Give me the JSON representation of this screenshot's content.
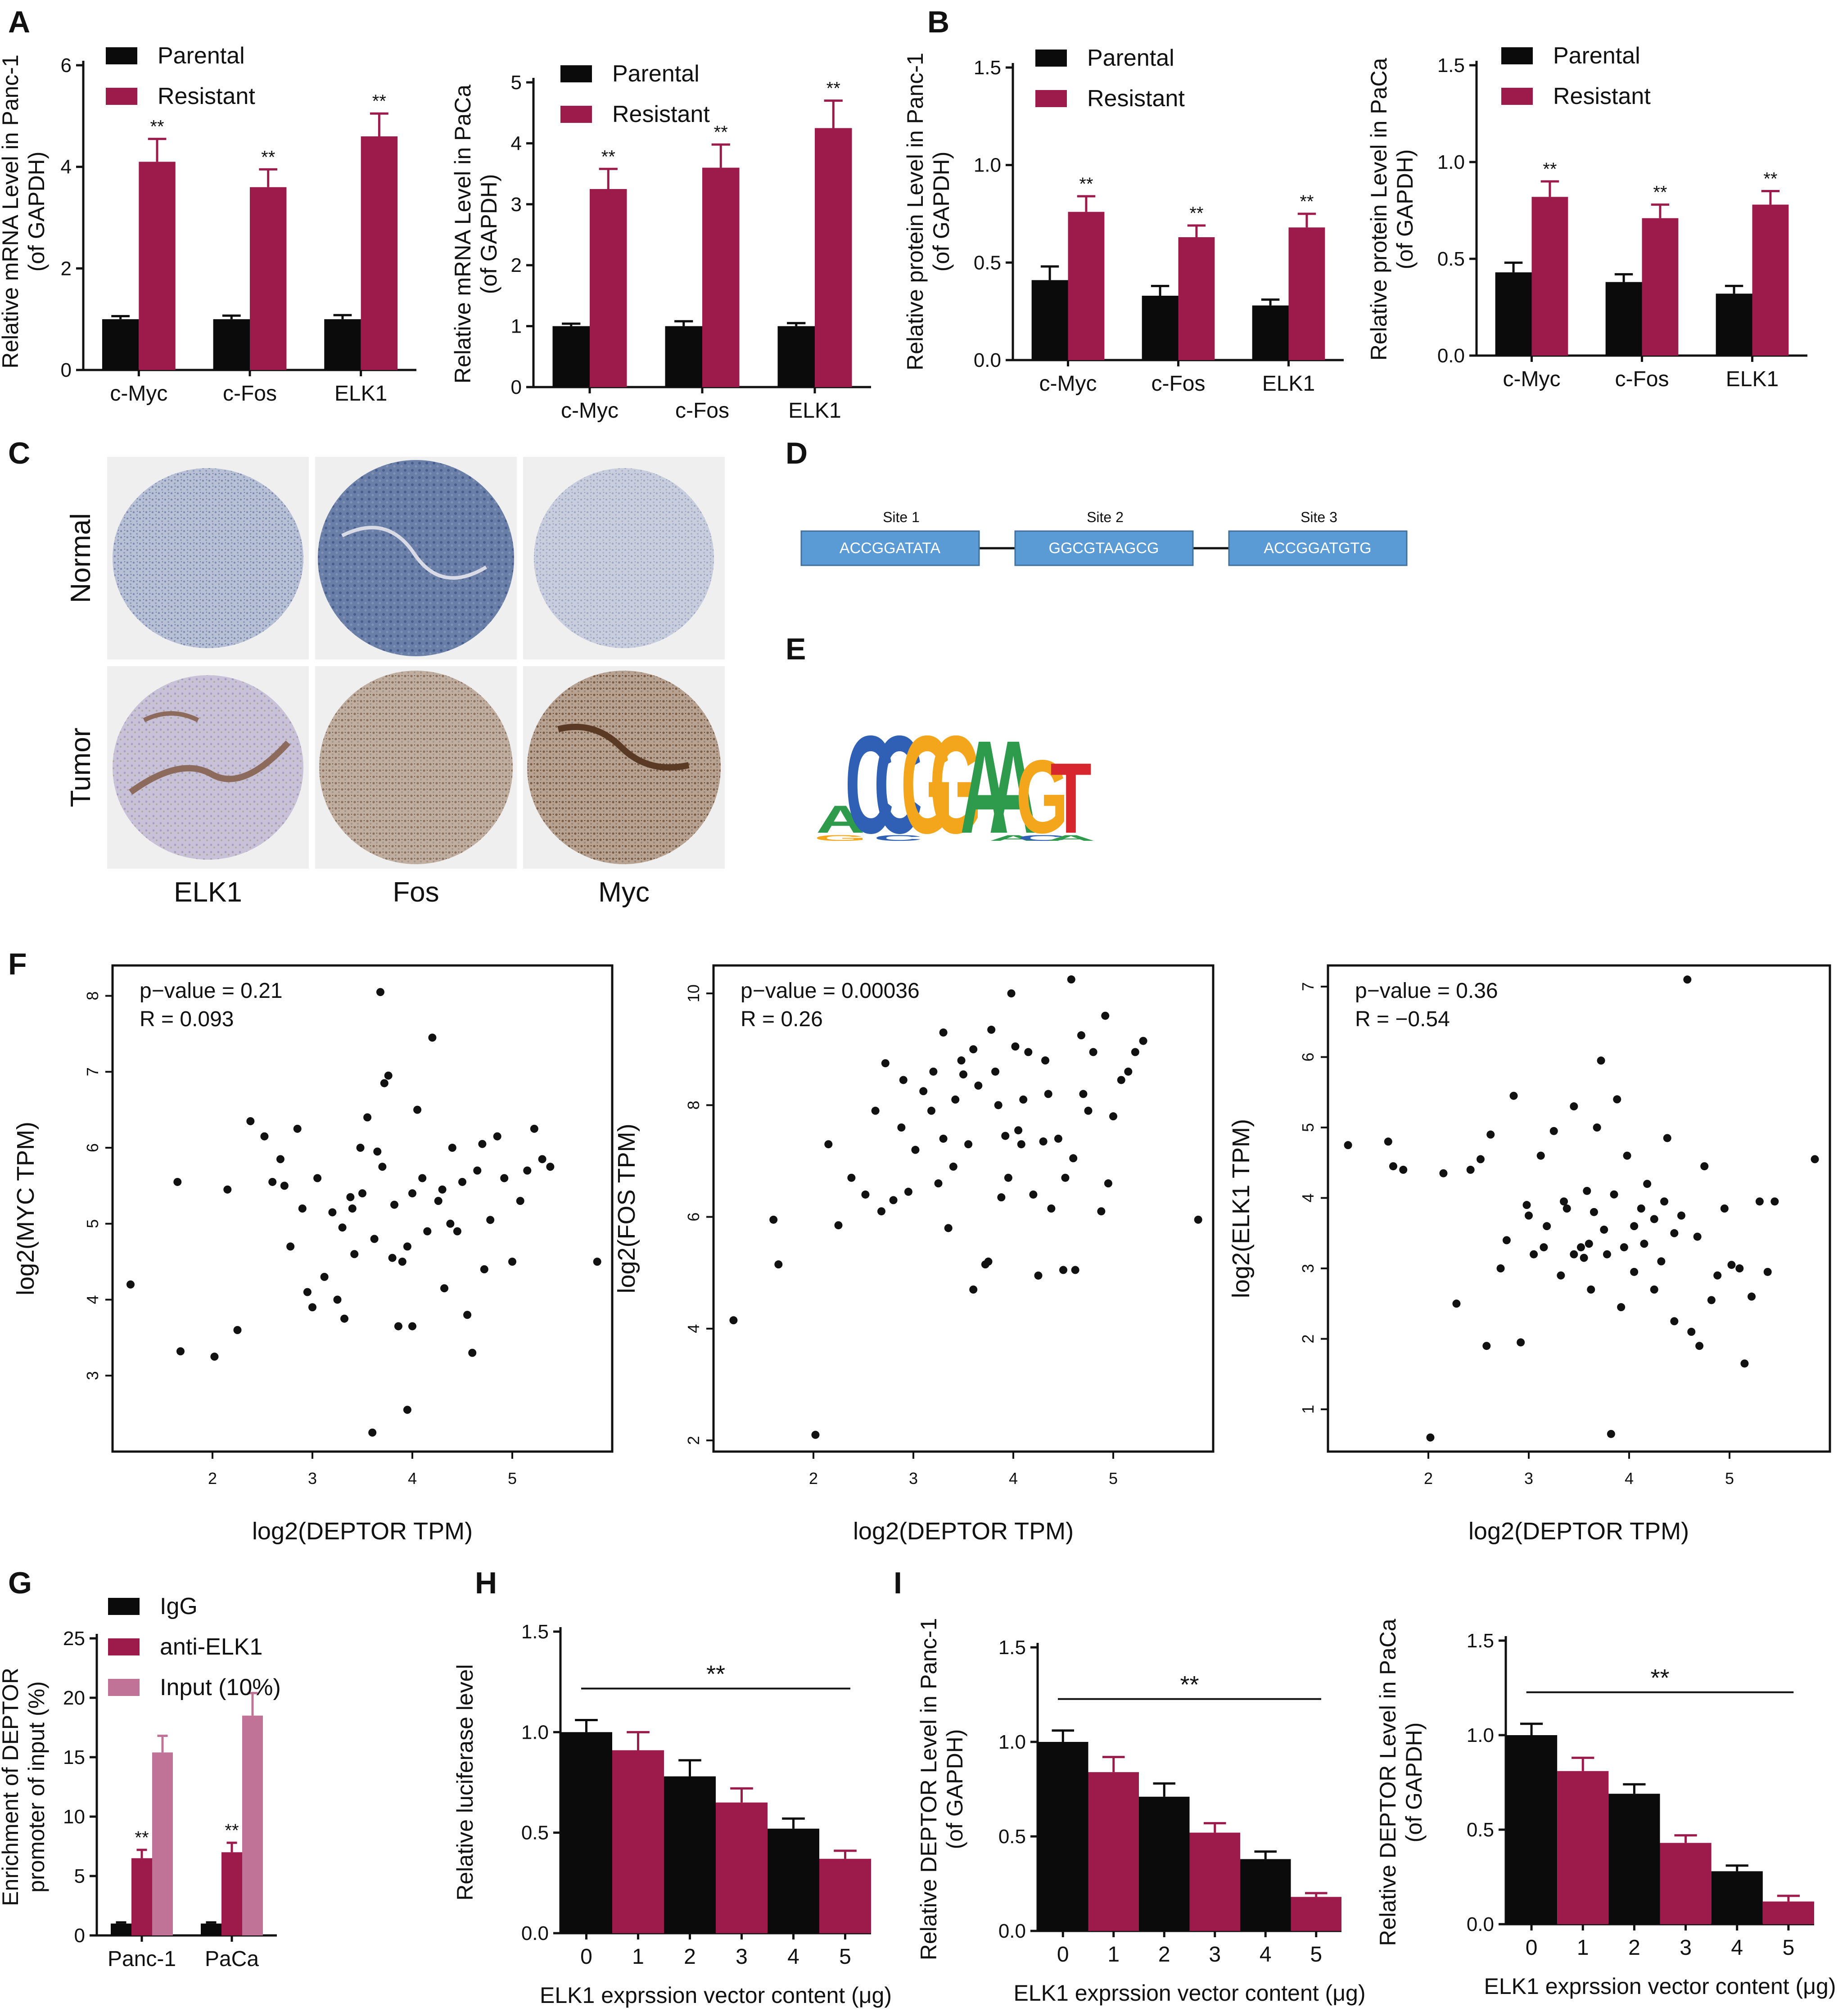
{
  "colors": {
    "black": "#0b0b0b",
    "crimson": "#9c1b4b",
    "pink": "#c07397",
    "box_blue": "#5b9bd5",
    "motif_A": "#2e9a4b",
    "motif_C": "#2f60b5",
    "motif_G": "#f3a61c",
    "motif_T": "#d7262e"
  },
  "panel_labels": {
    "A": "A",
    "B": "B",
    "C": "C",
    "D": "D",
    "E": "E",
    "F": "F",
    "G": "G",
    "H": "H",
    "I": "I"
  },
  "legends": {
    "parental": "Parental",
    "resistant": "Resistant",
    "igg": "IgG",
    "anti_elk1": "anti-ELK1",
    "input": "Input (10%)"
  },
  "significance": "**",
  "ihc": {
    "row_labels": [
      "Normal",
      "Tumor"
    ],
    "col_labels": [
      "ELK1",
      "Fos",
      "Myc"
    ]
  },
  "promoter": {
    "sites": [
      {
        "name": "Site 1",
        "seq": "ACCGGATATA"
      },
      {
        "name": "Site 2",
        "seq": "GGCGTAAGCG"
      },
      {
        "name": "Site 3",
        "seq": "ACCGGATGTG"
      }
    ]
  },
  "motif": {
    "letters": [
      "A",
      "C",
      "C",
      "G",
      "G",
      "A",
      "A",
      "G",
      "T"
    ]
  },
  "chart_data": [
    {
      "id": "A1",
      "type": "bar",
      "categories": [
        "c-Myc",
        "c-Fos",
        "ELK1"
      ],
      "ylabel": [
        "Relative mRNA Level in Panc-1",
        "(of GAPDH)"
      ],
      "ylim": [
        0,
        6
      ],
      "yticks": [
        0,
        2,
        4,
        6
      ],
      "series": [
        {
          "name": "Parental",
          "values": [
            1.0,
            1.0,
            1.0
          ],
          "errors": [
            0.06,
            0.07,
            0.08
          ]
        },
        {
          "name": "Resistant",
          "values": [
            4.1,
            3.6,
            4.6
          ],
          "errors": [
            0.45,
            0.35,
            0.45
          ]
        }
      ],
      "annotations": [
        "**",
        "**",
        "**"
      ]
    },
    {
      "id": "A2",
      "type": "bar",
      "categories": [
        "c-Myc",
        "c-Fos",
        "ELK1"
      ],
      "ylabel": [
        "Relative mRNA Level in PaCa",
        "(of GAPDH)"
      ],
      "ylim": [
        0,
        5
      ],
      "yticks": [
        0,
        1,
        2,
        3,
        4,
        5
      ],
      "series": [
        {
          "name": "Parental",
          "values": [
            1.0,
            1.0,
            1.0
          ],
          "errors": [
            0.04,
            0.08,
            0.05
          ]
        },
        {
          "name": "Resistant",
          "values": [
            3.25,
            3.6,
            4.25
          ],
          "errors": [
            0.33,
            0.38,
            0.45
          ]
        }
      ],
      "annotations": [
        "**",
        "**",
        "**"
      ]
    },
    {
      "id": "B1",
      "type": "bar",
      "categories": [
        "c-Myc",
        "c-Fos",
        "ELK1"
      ],
      "ylabel": [
        "Relative protein Level in Panc-1",
        "(of GAPDH)"
      ],
      "ylim": [
        0,
        1.5
      ],
      "yticks": [
        0.0,
        0.5,
        1.0,
        1.5
      ],
      "series": [
        {
          "name": "Parental",
          "values": [
            0.41,
            0.33,
            0.28
          ],
          "errors": [
            0.07,
            0.05,
            0.03
          ]
        },
        {
          "name": "Resistant",
          "values": [
            0.76,
            0.63,
            0.68
          ],
          "errors": [
            0.08,
            0.06,
            0.07
          ]
        }
      ],
      "annotations": [
        "**",
        "**",
        "**"
      ]
    },
    {
      "id": "B2",
      "type": "bar",
      "categories": [
        "c-Myc",
        "c-Fos",
        "ELK1"
      ],
      "ylabel": [
        "Relative protein Level in PaCa",
        "(of GAPDH)"
      ],
      "ylim": [
        0,
        1.5
      ],
      "yticks": [
        0.0,
        0.5,
        1.0,
        1.5
      ],
      "series": [
        {
          "name": "Parental",
          "values": [
            0.43,
            0.38,
            0.32
          ],
          "errors": [
            0.05,
            0.04,
            0.04
          ]
        },
        {
          "name": "Resistant",
          "values": [
            0.82,
            0.71,
            0.78
          ],
          "errors": [
            0.08,
            0.07,
            0.07
          ]
        }
      ],
      "annotations": [
        "**",
        "**",
        "**"
      ]
    },
    {
      "id": "F1",
      "type": "scatter",
      "xlabel": "log2(DEPTOR TPM)",
      "ylabel": "log2(MYC TPM)",
      "xlim": [
        1.0,
        6.0
      ],
      "ylim": [
        2.0,
        8.4
      ],
      "xticks": [
        2,
        3,
        4,
        5
      ],
      "yticks": [
        3,
        4,
        5,
        6,
        7,
        8
      ],
      "stats": [
        "p−value = 0.21",
        "R = 0.093"
      ],
      "points": [
        [
          1.18,
          4.2
        ],
        [
          1.65,
          5.55
        ],
        [
          1.68,
          3.32
        ],
        [
          2.02,
          3.25
        ],
        [
          2.15,
          5.45
        ],
        [
          2.25,
          3.6
        ],
        [
          2.38,
          6.35
        ],
        [
          2.52,
          6.15
        ],
        [
          2.6,
          5.55
        ],
        [
          2.68,
          5.85
        ],
        [
          2.72,
          5.5
        ],
        [
          2.78,
          4.7
        ],
        [
          2.85,
          6.25
        ],
        [
          2.9,
          5.2
        ],
        [
          2.95,
          4.1
        ],
        [
          3.0,
          3.9
        ],
        [
          3.05,
          5.6
        ],
        [
          3.12,
          4.3
        ],
        [
          3.2,
          5.15
        ],
        [
          3.25,
          4.0
        ],
        [
          3.32,
          3.75
        ],
        [
          3.38,
          5.35
        ],
        [
          3.42,
          4.6
        ],
        [
          3.48,
          6.0
        ],
        [
          3.55,
          6.4
        ],
        [
          3.62,
          4.8
        ],
        [
          3.68,
          8.05
        ],
        [
          3.72,
          6.85
        ],
        [
          3.76,
          6.95
        ],
        [
          3.82,
          5.25
        ],
        [
          3.86,
          3.65
        ],
        [
          3.9,
          4.5
        ],
        [
          3.95,
          2.55
        ],
        [
          4.0,
          3.65
        ],
        [
          4.05,
          6.5
        ],
        [
          4.1,
          5.6
        ],
        [
          4.15,
          4.9
        ],
        [
          4.2,
          7.45
        ],
        [
          4.26,
          5.3
        ],
        [
          4.32,
          4.15
        ],
        [
          4.38,
          5.0
        ],
        [
          4.45,
          4.9
        ],
        [
          4.5,
          5.55
        ],
        [
          4.55,
          3.8
        ],
        [
          4.6,
          3.3
        ],
        [
          4.65,
          5.7
        ],
        [
          4.72,
          4.4
        ],
        [
          4.78,
          5.05
        ],
        [
          4.85,
          6.15
        ],
        [
          4.92,
          5.6
        ],
        [
          5.0,
          4.5
        ],
        [
          5.08,
          5.3
        ],
        [
          5.15,
          5.7
        ],
        [
          5.22,
          6.25
        ],
        [
          5.3,
          5.85
        ],
        [
          5.38,
          5.75
        ],
        [
          5.85,
          4.5
        ],
        [
          3.6,
          2.25
        ],
        [
          4.4,
          6.0
        ],
        [
          3.3,
          4.95
        ],
        [
          3.5,
          5.4
        ],
        [
          3.7,
          5.75
        ],
        [
          3.8,
          4.55
        ],
        [
          4.0,
          5.4
        ],
        [
          3.95,
          4.7
        ],
        [
          4.3,
          5.45
        ],
        [
          3.4,
          5.2
        ],
        [
          4.7,
          6.05
        ],
        [
          3.65,
          5.95
        ]
      ]
    },
    {
      "id": "F2",
      "type": "scatter",
      "xlabel": "log2(DEPTOR TPM)",
      "ylabel": "log2(FOS TPM)",
      "xlim": [
        1.0,
        6.0
      ],
      "ylim": [
        1.8,
        10.5
      ],
      "xticks": [
        2,
        3,
        4,
        5
      ],
      "yticks": [
        2,
        4,
        6,
        8,
        10
      ],
      "stats": [
        "p−value = 0.00036",
        "R = 0.26"
      ],
      "points": [
        [
          1.2,
          4.15
        ],
        [
          1.6,
          5.95
        ],
        [
          1.65,
          5.15
        ],
        [
          2.02,
          2.1
        ],
        [
          2.15,
          7.3
        ],
        [
          2.25,
          5.85
        ],
        [
          2.38,
          6.7
        ],
        [
          2.52,
          6.4
        ],
        [
          2.62,
          7.9
        ],
        [
          2.68,
          6.1
        ],
        [
          2.72,
          8.75
        ],
        [
          2.8,
          6.3
        ],
        [
          2.88,
          7.6
        ],
        [
          2.95,
          6.45
        ],
        [
          3.02,
          7.2
        ],
        [
          3.1,
          8.25
        ],
        [
          3.18,
          7.9
        ],
        [
          3.25,
          6.6
        ],
        [
          3.3,
          9.3
        ],
        [
          3.35,
          5.8
        ],
        [
          3.42,
          8.1
        ],
        [
          3.48,
          8.8
        ],
        [
          3.55,
          7.3
        ],
        [
          3.6,
          4.7
        ],
        [
          3.65,
          8.35
        ],
        [
          3.72,
          5.15
        ],
        [
          3.78,
          9.35
        ],
        [
          3.82,
          8.6
        ],
        [
          3.88,
          6.35
        ],
        [
          3.92,
          7.45
        ],
        [
          3.98,
          10.0
        ],
        [
          4.02,
          9.05
        ],
        [
          4.08,
          7.3
        ],
        [
          4.15,
          8.95
        ],
        [
          4.2,
          6.4
        ],
        [
          4.25,
          4.95
        ],
        [
          4.32,
          8.8
        ],
        [
          4.38,
          6.15
        ],
        [
          4.45,
          7.4
        ],
        [
          4.52,
          6.7
        ],
        [
          4.58,
          10.25
        ],
        [
          4.62,
          5.05
        ],
        [
          4.68,
          9.25
        ],
        [
          4.75,
          7.9
        ],
        [
          4.8,
          8.95
        ],
        [
          4.88,
          6.1
        ],
        [
          4.92,
          9.6
        ],
        [
          5.0,
          7.8
        ],
        [
          5.08,
          8.45
        ],
        [
          5.15,
          8.6
        ],
        [
          5.22,
          8.95
        ],
        [
          5.3,
          9.15
        ],
        [
          5.85,
          5.95
        ],
        [
          3.75,
          5.2
        ],
        [
          4.5,
          5.05
        ],
        [
          3.5,
          8.55
        ],
        [
          4.05,
          7.55
        ],
        [
          4.35,
          8.2
        ],
        [
          3.95,
          6.7
        ],
        [
          4.7,
          8.2
        ],
        [
          3.2,
          8.6
        ],
        [
          3.4,
          6.9
        ],
        [
          4.1,
          8.1
        ],
        [
          3.6,
          9.0
        ],
        [
          4.6,
          7.05
        ],
        [
          3.85,
          8.0
        ],
        [
          4.3,
          7.35
        ],
        [
          3.3,
          7.4
        ],
        [
          4.95,
          6.6
        ],
        [
          2.9,
          8.45
        ]
      ]
    },
    {
      "id": "F3",
      "type": "scatter",
      "xlabel": "log2(DEPTOR TPM)",
      "ylabel": "log2(ELK1 TPM)",
      "xlim": [
        1.0,
        6.0
      ],
      "ylim": [
        0.4,
        7.3
      ],
      "xticks": [
        2,
        3,
        4,
        5
      ],
      "yticks": [
        1,
        2,
        3,
        4,
        5,
        6,
        7
      ],
      "stats": [
        "p−value = 0.36",
        "R = −0.54"
      ],
      "points": [
        [
          1.2,
          4.75
        ],
        [
          1.6,
          4.8
        ],
        [
          1.65,
          4.45
        ],
        [
          1.75,
          4.4
        ],
        [
          2.02,
          0.6
        ],
        [
          2.15,
          4.35
        ],
        [
          2.28,
          2.5
        ],
        [
          2.42,
          4.4
        ],
        [
          2.52,
          4.55
        ],
        [
          2.58,
          1.9
        ],
        [
          2.62,
          4.9
        ],
        [
          2.72,
          3.0
        ],
        [
          2.78,
          3.4
        ],
        [
          2.85,
          5.45
        ],
        [
          2.92,
          1.95
        ],
        [
          2.98,
          3.9
        ],
        [
          3.05,
          3.2
        ],
        [
          3.12,
          4.6
        ],
        [
          3.18,
          3.6
        ],
        [
          3.25,
          4.95
        ],
        [
          3.32,
          2.9
        ],
        [
          3.38,
          3.85
        ],
        [
          3.45,
          5.3
        ],
        [
          3.52,
          3.3
        ],
        [
          3.58,
          4.1
        ],
        [
          3.62,
          2.7
        ],
        [
          3.68,
          5.0
        ],
        [
          3.72,
          5.95
        ],
        [
          3.78,
          3.2
        ],
        [
          3.82,
          0.65
        ],
        [
          3.88,
          5.4
        ],
        [
          3.92,
          2.45
        ],
        [
          3.98,
          4.6
        ],
        [
          4.05,
          2.95
        ],
        [
          4.12,
          3.85
        ],
        [
          4.18,
          4.2
        ],
        [
          4.25,
          2.7
        ],
        [
          4.32,
          3.1
        ],
        [
          4.38,
          4.85
        ],
        [
          4.45,
          2.25
        ],
        [
          4.52,
          3.75
        ],
        [
          4.58,
          7.1
        ],
        [
          4.62,
          2.1
        ],
        [
          4.68,
          3.45
        ],
        [
          4.75,
          4.45
        ],
        [
          4.82,
          2.55
        ],
        [
          4.88,
          2.9
        ],
        [
          4.95,
          3.85
        ],
        [
          5.02,
          3.05
        ],
        [
          5.1,
          3.0
        ],
        [
          5.15,
          1.65
        ],
        [
          5.22,
          2.6
        ],
        [
          5.3,
          3.95
        ],
        [
          5.38,
          2.95
        ],
        [
          5.45,
          3.95
        ],
        [
          5.85,
          4.55
        ],
        [
          3.0,
          3.75
        ],
        [
          3.35,
          3.95
        ],
        [
          3.55,
          3.15
        ],
        [
          3.75,
          3.55
        ],
        [
          3.95,
          3.3
        ],
        [
          4.15,
          3.35
        ],
        [
          4.35,
          3.95
        ],
        [
          3.45,
          3.2
        ],
        [
          3.65,
          3.8
        ],
        [
          4.05,
          3.6
        ],
        [
          4.25,
          3.7
        ],
        [
          4.45,
          3.5
        ],
        [
          3.85,
          4.05
        ],
        [
          3.15,
          3.3
        ],
        [
          4.7,
          1.9
        ],
        [
          3.6,
          3.35
        ]
      ]
    },
    {
      "id": "G",
      "type": "bar",
      "categories": [
        "Panc-1",
        "PaCa"
      ],
      "ylabel": [
        "Enrichment of DEPTOR",
        "promoter of input (%)"
      ],
      "ylim": [
        0,
        25
      ],
      "yticks": [
        0,
        5,
        10,
        15,
        20,
        25
      ],
      "series": [
        {
          "name": "IgG",
          "values": [
            1.0,
            1.0
          ],
          "errors": [
            0.1,
            0.1
          ]
        },
        {
          "name": "anti-ELK1",
          "values": [
            6.5,
            7.0
          ],
          "errors": [
            0.7,
            0.8
          ]
        },
        {
          "name": "Input (10%)",
          "values": [
            15.4,
            18.5
          ],
          "errors": [
            1.4,
            1.9
          ]
        }
      ],
      "annotations": [
        "**",
        "**"
      ]
    },
    {
      "id": "H",
      "type": "bar",
      "categories": [
        "0",
        "1",
        "2",
        "3",
        "4",
        "5"
      ],
      "xlabel": "ELK1 exprssion vector content (μg)",
      "ylabel": [
        "Relative luciferase level"
      ],
      "ylim": [
        0,
        1.5
      ],
      "yticks": [
        0.0,
        0.5,
        1.0,
        1.5
      ],
      "values": [
        1.0,
        0.91,
        0.78,
        0.65,
        0.52,
        0.37
      ],
      "errors": [
        0.06,
        0.09,
        0.08,
        0.07,
        0.05,
        0.04
      ],
      "annotation": "**"
    },
    {
      "id": "I1",
      "type": "bar",
      "categories": [
        "0",
        "1",
        "2",
        "3",
        "4",
        "5"
      ],
      "xlabel": "ELK1 exprssion vector content (μg)",
      "ylabel": [
        "Relative DEPTOR Level in Panc-1",
        "(of GAPDH)"
      ],
      "ylim": [
        0,
        1.5
      ],
      "yticks": [
        0.0,
        0.5,
        1.0,
        1.5
      ],
      "values": [
        1.0,
        0.84,
        0.71,
        0.52,
        0.38,
        0.18
      ],
      "errors": [
        0.06,
        0.08,
        0.07,
        0.05,
        0.04,
        0.02
      ],
      "annotation": "**"
    },
    {
      "id": "I2",
      "type": "bar",
      "categories": [
        "0",
        "1",
        "2",
        "3",
        "4",
        "5"
      ],
      "xlabel": "ELK1 exprssion vector content (μg)",
      "ylabel": [
        "Relative DEPTOR Level in PaCa",
        "(of GAPDH)"
      ],
      "ylim": [
        0,
        1.5
      ],
      "yticks": [
        0.0,
        0.5,
        1.0,
        1.5
      ],
      "values": [
        1.0,
        0.81,
        0.69,
        0.43,
        0.28,
        0.12
      ],
      "errors": [
        0.06,
        0.07,
        0.05,
        0.04,
        0.03,
        0.03
      ],
      "annotation": "**"
    }
  ]
}
